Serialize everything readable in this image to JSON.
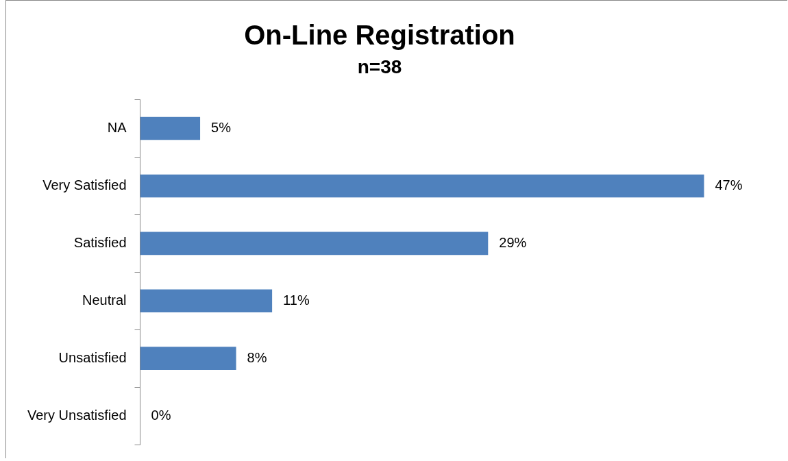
{
  "chart_data": {
    "type": "bar",
    "orientation": "horizontal",
    "title": "On-Line Registration",
    "subtitle": "n=38",
    "categories": [
      "NA",
      "Very Satisfied",
      "Satisfied",
      "Neutral",
      "Unsatisfied",
      "Very Unsatisfied"
    ],
    "values": [
      5,
      47,
      29,
      11,
      8,
      0
    ],
    "value_labels": [
      "5%",
      "47%",
      "29%",
      "11%",
      "8%",
      "0%"
    ],
    "color": "#4f81bd",
    "grid": false,
    "legend": false
  }
}
